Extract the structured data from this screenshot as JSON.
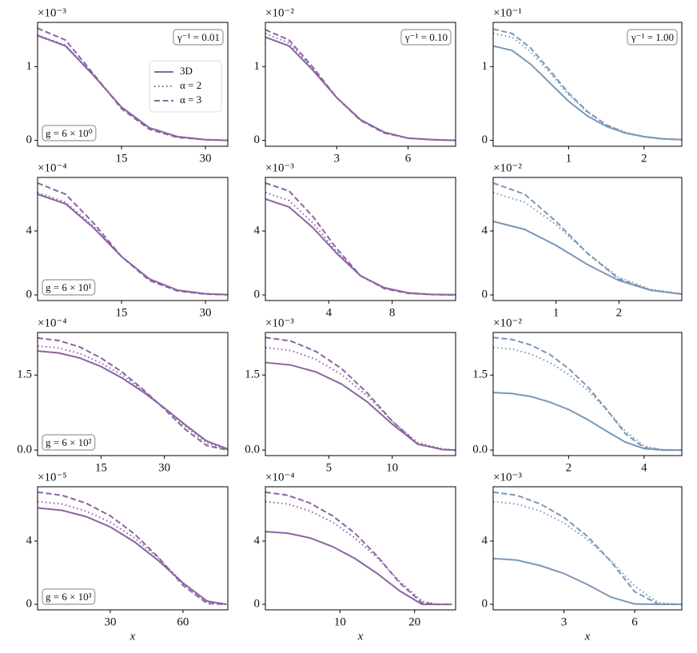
{
  "chart_data": [
    {
      "type": "line",
      "offset_text": "×10⁻³",
      "xlim": [
        0,
        34
      ],
      "xticks": [
        15,
        30
      ],
      "ylim": [
        -0.08,
        1.6
      ],
      "yticks": [
        0,
        1
      ],
      "annotations": [
        {
          "text": "γ⁻¹ = 0.01",
          "loc": "upper right"
        },
        {
          "text": "g = 6 × 10⁰",
          "loc": "lower left"
        }
      ],
      "legend": "upper right",
      "x": [
        0,
        5,
        10,
        15,
        20,
        25,
        30,
        34
      ],
      "series": [
        {
          "name": "3D",
          "color": "#8b64a1",
          "linestyle": "solid",
          "values": [
            1.42,
            1.28,
            0.88,
            0.45,
            0.17,
            0.05,
            0.01,
            0
          ]
        },
        {
          "name": "α = 2",
          "color": "#8b64a1",
          "linestyle": "dotted",
          "values": [
            1.43,
            1.29,
            0.89,
            0.45,
            0.17,
            0.05,
            0.01,
            0
          ]
        },
        {
          "name": "α = 3",
          "color": "#8b64a1",
          "linestyle": "dashed",
          "values": [
            1.52,
            1.36,
            0.9,
            0.43,
            0.15,
            0.04,
            0.01,
            0
          ]
        }
      ]
    },
    {
      "type": "line",
      "offset_text": "×10⁻²",
      "xlim": [
        0,
        8
      ],
      "xticks": [
        3,
        6
      ],
      "ylim": [
        -0.08,
        1.6
      ],
      "yticks": [
        0,
        1
      ],
      "annotations": [
        {
          "text": "γ⁻¹ = 0.10",
          "loc": "upper right"
        }
      ],
      "x": [
        0,
        1,
        2,
        3,
        4,
        5,
        6,
        7,
        8
      ],
      "series": [
        {
          "color": "#8b64a1",
          "linestyle": "solid",
          "values": [
            1.4,
            1.28,
            0.95,
            0.58,
            0.28,
            0.11,
            0.03,
            0.01,
            0
          ]
        },
        {
          "color": "#8b64a1",
          "linestyle": "dotted",
          "values": [
            1.45,
            1.32,
            0.97,
            0.58,
            0.28,
            0.11,
            0.03,
            0.01,
            0
          ]
        },
        {
          "color": "#8b64a1",
          "linestyle": "dashed",
          "values": [
            1.5,
            1.36,
            0.99,
            0.58,
            0.27,
            0.1,
            0.03,
            0.01,
            0
          ]
        }
      ]
    },
    {
      "type": "line",
      "offset_text": "×10⁻¹",
      "xlim": [
        0,
        2.5
      ],
      "xticks": [
        1,
        2
      ],
      "ylim": [
        -0.08,
        1.6
      ],
      "yticks": [
        0,
        1
      ],
      "annotations": [
        {
          "text": "γ⁻¹ = 1.00",
          "loc": "upper right"
        }
      ],
      "x": [
        0,
        0.25,
        0.5,
        0.75,
        1,
        1.25,
        1.5,
        1.75,
        2,
        2.25,
        2.5
      ],
      "series": [
        {
          "color": "#7b97b6",
          "linestyle": "solid",
          "values": [
            1.28,
            1.22,
            1.03,
            0.78,
            0.53,
            0.33,
            0.19,
            0.1,
            0.05,
            0.02,
            0.01
          ]
        },
        {
          "color": "#7b97b6",
          "linestyle": "dotted",
          "values": [
            1.45,
            1.4,
            1.2,
            0.92,
            0.62,
            0.38,
            0.21,
            0.11,
            0.05,
            0.02,
            0.01
          ]
        },
        {
          "color": "#7b97b6",
          "linestyle": "dashed",
          "values": [
            1.51,
            1.45,
            1.25,
            0.95,
            0.64,
            0.39,
            0.21,
            0.1,
            0.05,
            0.02,
            0.01
          ]
        }
      ]
    },
    {
      "type": "line",
      "offset_text": "×10⁻⁴",
      "xlim": [
        0,
        34
      ],
      "xticks": [
        15,
        30
      ],
      "ylim": [
        -0.35,
        7.35
      ],
      "yticks": [
        0,
        4
      ],
      "annotations": [
        {
          "text": "g = 6 × 10¹",
          "loc": "lower left"
        }
      ],
      "x": [
        0,
        5,
        10,
        15,
        20,
        25,
        30,
        34
      ],
      "series": [
        {
          "color": "#8b64a1",
          "linestyle": "solid",
          "values": [
            6.3,
            5.7,
            4.2,
            2.4,
            1.0,
            0.3,
            0.07,
            0.02
          ]
        },
        {
          "color": "#8b64a1",
          "linestyle": "dotted",
          "values": [
            6.4,
            5.8,
            4.3,
            2.4,
            1.0,
            0.3,
            0.07,
            0.02
          ]
        },
        {
          "color": "#8b64a1",
          "linestyle": "dashed",
          "values": [
            7.0,
            6.3,
            4.5,
            2.4,
            0.9,
            0.25,
            0.05,
            0.01
          ]
        }
      ]
    },
    {
      "type": "line",
      "offset_text": "×10⁻³",
      "xlim": [
        0,
        12
      ],
      "xticks": [
        4,
        8
      ],
      "ylim": [
        -0.35,
        7.35
      ],
      "yticks": [
        0,
        4
      ],
      "x": [
        0,
        1.5,
        3,
        4.5,
        6,
        7.5,
        9,
        10.5,
        12
      ],
      "series": [
        {
          "color": "#8b64a1",
          "linestyle": "solid",
          "values": [
            6.0,
            5.5,
            4.2,
            2.6,
            1.2,
            0.45,
            0.13,
            0.03,
            0.01
          ]
        },
        {
          "color": "#8b64a1",
          "linestyle": "dotted",
          "values": [
            6.4,
            5.9,
            4.5,
            2.7,
            1.2,
            0.45,
            0.13,
            0.03,
            0.01
          ]
        },
        {
          "color": "#8b64a1",
          "linestyle": "dashed",
          "values": [
            7.0,
            6.5,
            4.9,
            2.9,
            1.2,
            0.4,
            0.1,
            0.02,
            0
          ]
        }
      ]
    },
    {
      "type": "line",
      "offset_text": "×10⁻²",
      "xlim": [
        0,
        3
      ],
      "xticks": [
        1,
        2
      ],
      "ylim": [
        -0.35,
        7.35
      ],
      "yticks": [
        0,
        4
      ],
      "x": [
        0,
        0.5,
        1,
        1.5,
        2,
        2.5,
        3
      ],
      "series": [
        {
          "color": "#7b97b6",
          "linestyle": "solid",
          "values": [
            4.6,
            4.1,
            3.1,
            1.9,
            0.9,
            0.3,
            0.05
          ]
        },
        {
          "color": "#7b97b6",
          "linestyle": "dotted",
          "values": [
            6.4,
            5.8,
            4.4,
            2.6,
            1.1,
            0.35,
            0.07
          ]
        },
        {
          "color": "#7b97b6",
          "linestyle": "dashed",
          "values": [
            7.0,
            6.3,
            4.6,
            2.6,
            1.0,
            0.3,
            0.05
          ]
        }
      ]
    },
    {
      "type": "line",
      "offset_text": "×10⁻⁴",
      "xlim": [
        0,
        45
      ],
      "xticks": [
        15,
        30
      ],
      "ylim": [
        -0.11,
        2.35
      ],
      "yticks": [
        {
          "value": 0,
          "label": "0.0"
        },
        1.5
      ],
      "annotations": [
        {
          "text": "g = 6 × 10²",
          "loc": "lower left"
        }
      ],
      "x": [
        0,
        5,
        10,
        15,
        20,
        25,
        30,
        35,
        40,
        45
      ],
      "series": [
        {
          "color": "#8b64a1",
          "linestyle": "solid",
          "values": [
            1.98,
            1.94,
            1.84,
            1.67,
            1.44,
            1.16,
            0.84,
            0.5,
            0.18,
            0.02
          ]
        },
        {
          "color": "#8b64a1",
          "linestyle": "dotted",
          "values": [
            2.08,
            2.04,
            1.93,
            1.74,
            1.5,
            1.19,
            0.84,
            0.47,
            0.14,
            0.01
          ]
        },
        {
          "color": "#8b64a1",
          "linestyle": "dashed",
          "values": [
            2.24,
            2.19,
            2.06,
            1.84,
            1.56,
            1.21,
            0.82,
            0.41,
            0.09,
            0
          ]
        }
      ]
    },
    {
      "type": "line",
      "offset_text": "×10⁻³",
      "xlim": [
        0,
        15
      ],
      "xticks": [
        5,
        10
      ],
      "ylim": [
        -0.11,
        2.35
      ],
      "yticks": [
        {
          "value": 0,
          "label": "0.0"
        },
        1.5
      ],
      "x": [
        0,
        2,
        4,
        6,
        8,
        10,
        12,
        14,
        15
      ],
      "series": [
        {
          "color": "#8b64a1",
          "linestyle": "solid",
          "values": [
            1.75,
            1.7,
            1.56,
            1.32,
            0.97,
            0.52,
            0.12,
            0.01,
            0
          ]
        },
        {
          "color": "#8b64a1",
          "linestyle": "dotted",
          "values": [
            2.05,
            1.99,
            1.81,
            1.51,
            1.09,
            0.58,
            0.15,
            0.02,
            0
          ]
        },
        {
          "color": "#8b64a1",
          "linestyle": "dashed",
          "values": [
            2.25,
            2.18,
            1.97,
            1.63,
            1.15,
            0.58,
            0.12,
            0.01,
            0
          ]
        }
      ]
    },
    {
      "type": "line",
      "offset_text": "×10⁻²",
      "xlim": [
        0,
        5
      ],
      "xticks": [
        2,
        4
      ],
      "ylim": [
        -0.11,
        2.35
      ],
      "yticks": [
        {
          "value": 0,
          "label": "0.0"
        },
        1.5
      ],
      "x": [
        0,
        0.5,
        1,
        1.5,
        2,
        2.5,
        3,
        3.5,
        4,
        4.5,
        5
      ],
      "series": [
        {
          "color": "#7b97b6",
          "linestyle": "solid",
          "values": [
            1.15,
            1.13,
            1.07,
            0.96,
            0.81,
            0.61,
            0.38,
            0.16,
            0.03,
            0,
            0
          ]
        },
        {
          "color": "#7b97b6",
          "linestyle": "dotted",
          "values": [
            2.05,
            2.02,
            1.92,
            1.75,
            1.51,
            1.2,
            0.81,
            0.38,
            0.08,
            0.01,
            0
          ]
        },
        {
          "color": "#7b97b6",
          "linestyle": "dashed",
          "values": [
            2.25,
            2.21,
            2.1,
            1.91,
            1.63,
            1.27,
            0.82,
            0.33,
            0.05,
            0,
            0
          ]
        }
      ]
    },
    {
      "type": "line",
      "offset_text": "×10⁻⁵",
      "xlim": [
        0,
        78.5
      ],
      "xticks": [
        30,
        60
      ],
      "ylim": [
        -0.35,
        7.44
      ],
      "yticks": [
        0,
        4
      ],
      "xlabel": "x",
      "annotations": [
        {
          "text": "g = 6 × 10³",
          "loc": "lower left"
        }
      ],
      "x": [
        0,
        10,
        20,
        30,
        40,
        50,
        60,
        70,
        78
      ],
      "series": [
        {
          "color": "#8b64a1",
          "linestyle": "solid",
          "values": [
            6.1,
            5.95,
            5.55,
            4.9,
            3.95,
            2.75,
            1.35,
            0.2,
            0
          ]
        },
        {
          "color": "#8b64a1",
          "linestyle": "dotted",
          "values": [
            6.5,
            6.35,
            5.9,
            5.2,
            4.2,
            2.9,
            1.35,
            0.15,
            0
          ]
        },
        {
          "color": "#8b64a1",
          "linestyle": "dashed",
          "values": [
            7.1,
            6.9,
            6.4,
            5.6,
            4.45,
            2.95,
            1.2,
            0.05,
            0
          ]
        }
      ]
    },
    {
      "type": "line",
      "offset_text": "×10⁻⁴",
      "xlim": [
        0,
        25.5
      ],
      "xticks": [
        10,
        20
      ],
      "ylim": [
        -0.35,
        7.44
      ],
      "yticks": [
        0,
        4
      ],
      "xlabel": "x",
      "x": [
        0,
        3,
        6,
        9,
        12,
        15,
        18,
        21,
        23,
        25
      ],
      "series": [
        {
          "color": "#8b64a1",
          "linestyle": "solid",
          "values": [
            4.6,
            4.5,
            4.2,
            3.65,
            2.9,
            1.95,
            0.85,
            0,
            0,
            0
          ]
        },
        {
          "color": "#8b64a1",
          "linestyle": "dotted",
          "values": [
            6.5,
            6.35,
            5.9,
            5.2,
            4.2,
            2.95,
            1.45,
            0.2,
            0.01,
            0
          ]
        },
        {
          "color": "#8b64a1",
          "linestyle": "dashed",
          "values": [
            7.1,
            6.9,
            6.4,
            5.6,
            4.5,
            3.05,
            1.35,
            0.1,
            0,
            0
          ]
        }
      ]
    },
    {
      "type": "line",
      "offset_text": "×10⁻³",
      "xlim": [
        0,
        8
      ],
      "xticks": [
        3,
        6
      ],
      "ylim": [
        -0.35,
        7.44
      ],
      "yticks": [
        0,
        4
      ],
      "xlabel": "x",
      "x": [
        0,
        1,
        2,
        3,
        4,
        5,
        6,
        7,
        8
      ],
      "series": [
        {
          "color": "#7b97b6",
          "linestyle": "solid",
          "values": [
            2.9,
            2.8,
            2.45,
            1.95,
            1.25,
            0.45,
            0.02,
            0,
            0
          ]
        },
        {
          "color": "#7b97b6",
          "linestyle": "dotted",
          "values": [
            6.5,
            6.35,
            5.9,
            5.15,
            4.1,
            2.75,
            1.15,
            0.1,
            0
          ]
        },
        {
          "color": "#7b97b6",
          "linestyle": "dashed",
          "values": [
            7.1,
            6.9,
            6.35,
            5.5,
            4.3,
            2.7,
            0.8,
            0.02,
            0
          ]
        }
      ]
    }
  ]
}
